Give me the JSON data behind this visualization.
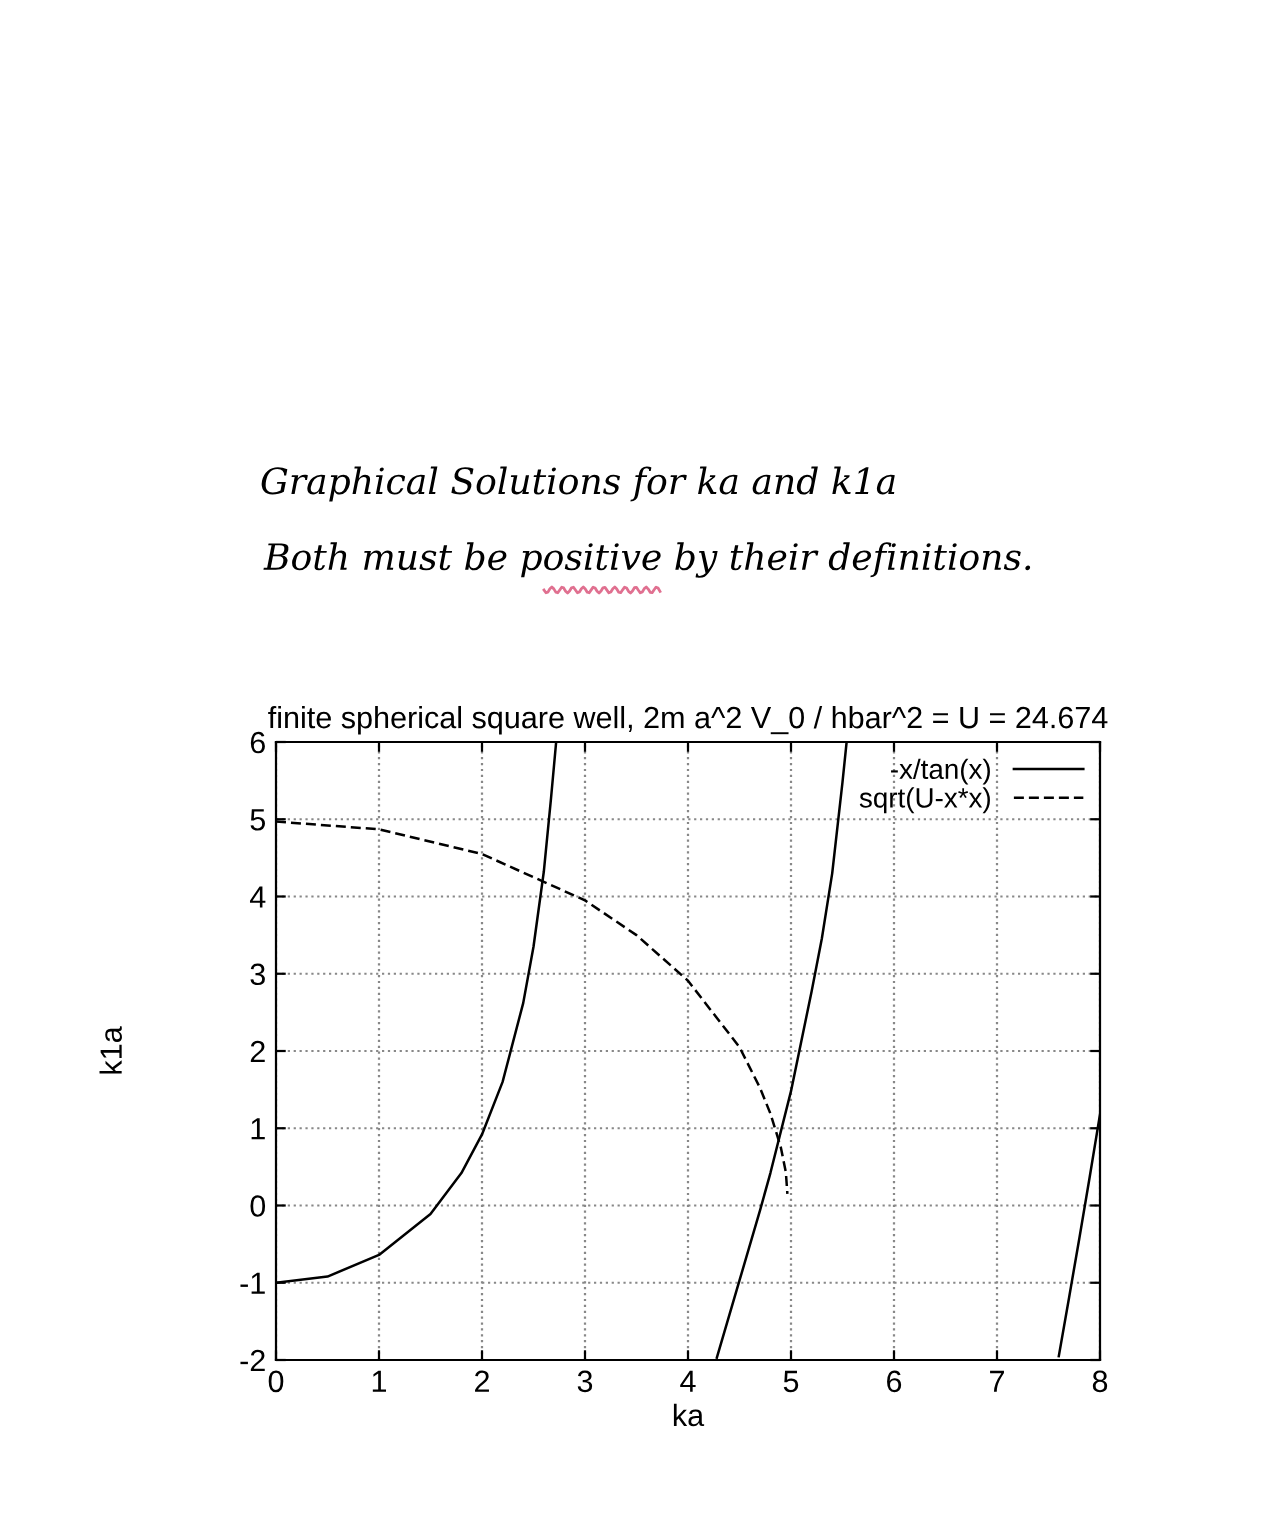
{
  "chart_data": {
    "type": "line",
    "title": "finite spherical square well, 2m a^2 V_0 / hbar^2 = U = 24.674",
    "xlabel": "ka",
    "ylabel": "k1a",
    "annotations": [
      "Graphical Solutions for ka and k1a",
      "Both must be positive by their definitions."
    ],
    "series": [
      {
        "name": "-x/tan(x)",
        "color": "#000000",
        "line_style": "solid",
        "x": [
          0,
          0.5,
          1,
          1.5,
          1.8,
          2.0,
          2.2,
          2.4,
          2.5,
          2.6,
          2.67,
          2.72,
          null,
          4.28,
          4.5,
          4.7,
          4.8,
          5.0,
          5.2,
          5.3,
          5.4,
          5.5,
          5.54,
          null,
          7.6,
          7.7,
          7.8,
          7.9,
          8.0
        ],
        "values": [
          -1,
          -0.92,
          -0.64,
          -0.11,
          0.42,
          0.92,
          1.6,
          2.62,
          3.35,
          4.32,
          5.27,
          6.0,
          null,
          -1.97,
          -0.97,
          -0.06,
          0.42,
          1.48,
          2.77,
          3.46,
          4.3,
          5.48,
          6.0,
          null,
          -1.95,
          -1.19,
          -0.42,
          0.37,
          1.18
        ]
      },
      {
        "name": "sqrt(U-x*x)",
        "color": "#000000",
        "line_style": "dashed",
        "x": [
          0,
          1,
          2,
          3,
          3.5,
          4,
          4.5,
          4.7,
          4.8,
          4.9,
          4.95,
          4.965
        ],
        "values": [
          4.97,
          4.87,
          4.55,
          3.95,
          3.5,
          2.91,
          2.05,
          1.52,
          1.19,
          0.76,
          0.43,
          0.15
        ]
      }
    ],
    "xlim": [
      0,
      8
    ],
    "ylim": [
      -2,
      6
    ],
    "xticks": [
      0,
      1,
      2,
      3,
      4,
      5,
      6,
      7,
      8
    ],
    "yticks": [
      -2,
      -1,
      0,
      1,
      2,
      3,
      4,
      5,
      6
    ],
    "grid": true,
    "legend": "top right"
  }
}
